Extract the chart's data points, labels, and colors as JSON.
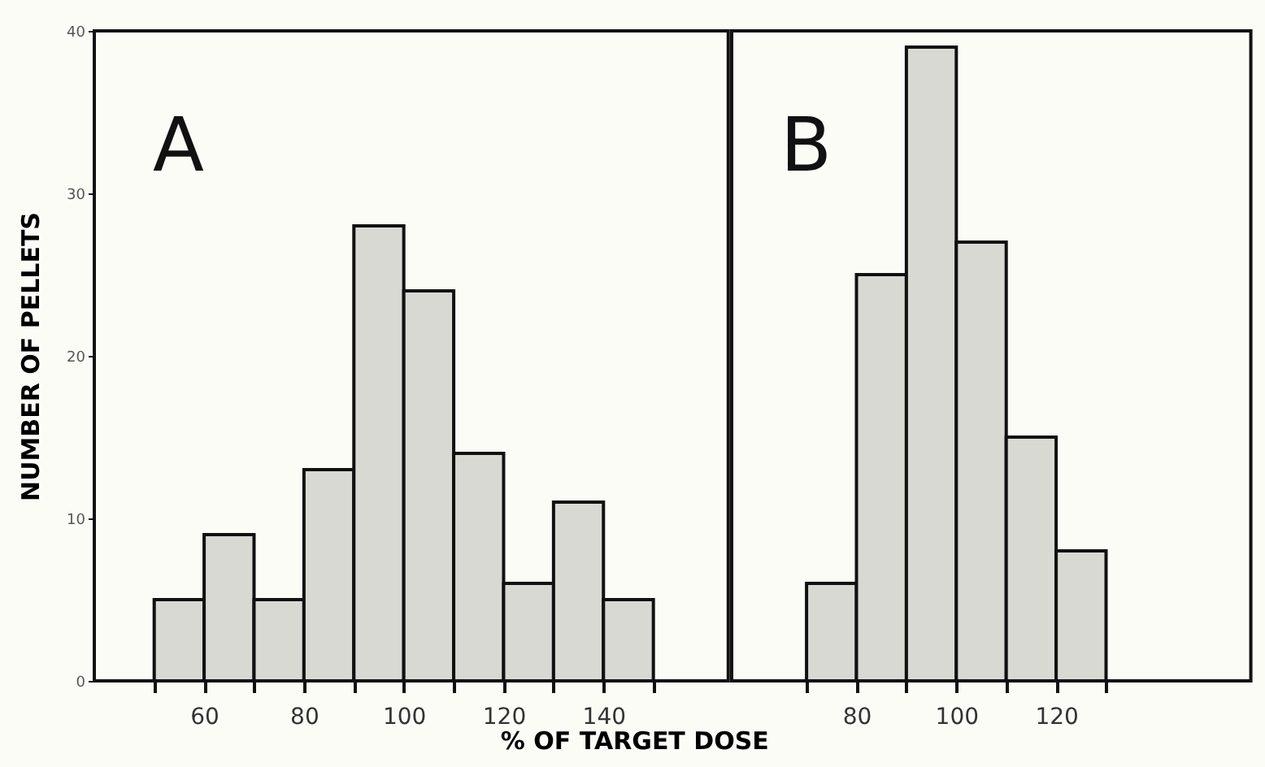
{
  "chart_data": [
    {
      "type": "histogram",
      "title": "A",
      "xlabel": "% OF TARGET DOSE",
      "ylabel": "NUMBER OF PELLETS",
      "bins": [
        50,
        60,
        70,
        80,
        90,
        100,
        110,
        120,
        130,
        140,
        150
      ],
      "values": [
        5,
        9,
        5,
        13,
        28,
        24,
        14,
        6,
        11,
        5
      ],
      "color": "#d9d9d4",
      "xlim": [
        38,
        165
      ],
      "xticks": [
        {
          "value": 50,
          "label": null
        },
        60,
        {
          "value": 70,
          "label": null
        },
        80,
        {
          "value": 90,
          "label": null
        },
        100,
        {
          "value": 110,
          "label": null
        },
        120,
        {
          "value": 130,
          "label": null
        },
        140,
        {
          "value": 150,
          "label": null
        }
      ],
      "ylim": [
        0,
        40
      ],
      "yticks": [
        0,
        10,
        20,
        30,
        40
      ]
    },
    {
      "type": "histogram",
      "title": "B",
      "bins": [
        70,
        80,
        90,
        100,
        110,
        120,
        130
      ],
      "values": [
        6,
        25,
        39,
        27,
        15,
        8
      ],
      "color": "#d9d9d4",
      "xlim": [
        55,
        159
      ],
      "xticks": [
        {
          "value": 70,
          "label": null
        },
        80,
        {
          "value": 90,
          "label": null
        },
        100,
        {
          "value": 110,
          "label": null
        },
        120,
        {
          "value": 130,
          "label": null
        }
      ],
      "ylim": [
        0,
        40
      ],
      "yticks": [
        0,
        10,
        20,
        30,
        40
      ],
      "tick_labels": "x"
    }
  ]
}
